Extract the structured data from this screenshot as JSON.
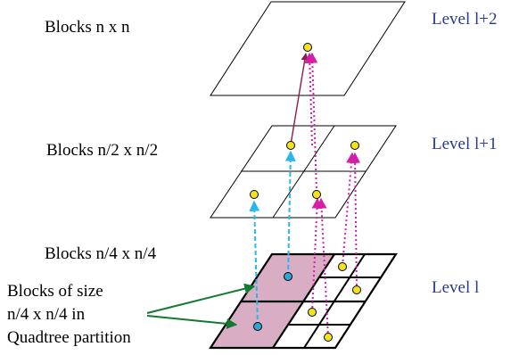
{
  "block_labels": {
    "level_top": "Blocks n x n",
    "level_mid": "Blocks n/2 x n/2",
    "level_bottom": "Blocks n/4 x n/4"
  },
  "level_labels": {
    "top": "Level l+2",
    "mid": "Level l+1",
    "bottom": "Level l"
  },
  "callout": {
    "line1": "Blocks of size",
    "line2": "n/4 x n/4 in",
    "line3": "Quadtree partition"
  },
  "colors": {
    "shaded_block": "#d9aec4",
    "node_yellow": "#f5e21a",
    "node_blue": "#2aa7d6",
    "arrow_blue": "#29b6e8",
    "arrow_magenta": "#d61fa8",
    "arrow_dark": "#8c1d4a",
    "arrow_green": "#127a2e",
    "level_text": "#2b3a8f"
  }
}
